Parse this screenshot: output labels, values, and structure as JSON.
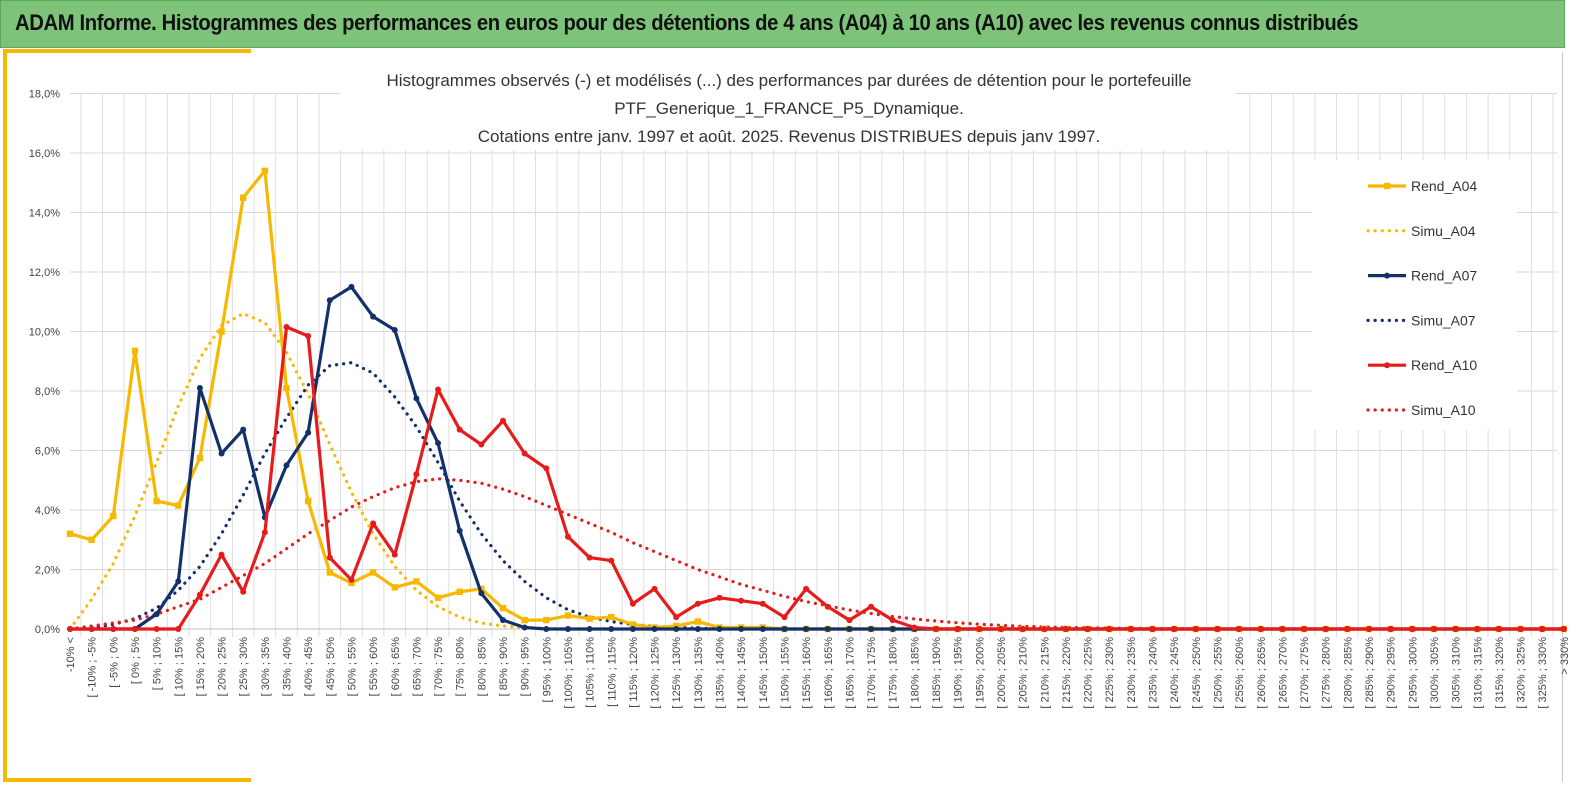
{
  "banner": {
    "title": "ADAM Informe. Histogrammes des performances en euros pour des détentions de 4 ans (A04) à 10 ans (A10) avec les revenus connus distribués"
  },
  "colors": {
    "banner": "#7dc47a",
    "accent": "#f6b800",
    "A04": "#f6b800",
    "A07": "#13306b",
    "A10": "#e61b1b"
  },
  "chart_data": {
    "type": "line",
    "title_lines": [
      "Histogrammes observés (-) et modélisés (...) des performances par durées de détention pour le portefeuille",
      "PTF_Generique_1_FRANCE_P5_Dynamique.",
      "Cotations entre janv. 1997 et août. 2025. Revenus DISTRIBUES depuis janv 1997."
    ],
    "xlabel": "",
    "ylabel": "",
    "ylim": [
      0,
      18
    ],
    "yticks": [
      "0,0%",
      "2,0%",
      "4,0%",
      "6,0%",
      "8,0%",
      "10,0%",
      "12,0%",
      "14,0%",
      "16,0%",
      "18,0%"
    ],
    "grid": true,
    "legend_position": "right",
    "categories": [
      "-10% <",
      "[ -10% ; -5%",
      "[ -5% ; 0%",
      "[ 0% ; 5%",
      "[ 5% ; 10%",
      "[ 10% ; 15%",
      "[ 15% ; 20%",
      "[ 20% ; 25%",
      "[ 25% ; 30%",
      "[ 30% ; 35%",
      "[ 35% ; 40%",
      "[ 40% ; 45%",
      "[ 45% ; 50%",
      "[ 50% ; 55%",
      "[ 55% ; 60%",
      "[ 60% ; 65%",
      "[ 65% ; 70%",
      "[ 70% ; 75%",
      "[ 75% ; 80%",
      "[ 80% ; 85%",
      "[ 85% ; 90%",
      "[ 90% ; 95%",
      "[ 95% ; 100%",
      "[ 100% ; 105%",
      "[ 105% ; 110%",
      "[ 110% ; 115%",
      "[ 115% ; 120%",
      "[ 120% ; 125%",
      "[ 125% ; 130%",
      "[ 130% ; 135%",
      "[ 135% ; 140%",
      "[ 140% ; 145%",
      "[ 145% ; 150%",
      "[ 150% ; 155%",
      "[ 155% ; 160%",
      "[ 160% ; 165%",
      "[ 165% ; 170%",
      "[ 170% ; 175%",
      "[ 175% ; 180%",
      "[ 180% ; 185%",
      "[ 185% ; 190%",
      "[ 190% ; 195%",
      "[ 195% ; 200%",
      "[ 200% ; 205%",
      "[ 205% ; 210%",
      "[ 210% ; 215%",
      "[ 215% ; 220%",
      "[ 220% ; 225%",
      "[ 225% ; 230%",
      "[ 230% ; 235%",
      "[ 235% ; 240%",
      "[ 240% ; 245%",
      "[ 245% ; 250%",
      "[ 250% ; 255%",
      "[ 255% ; 260%",
      "[ 260% ; 265%",
      "[ 265% ; 270%",
      "[ 270% ; 275%",
      "[ 275% ; 280%",
      "[ 280% ; 285%",
      "[ 285% ; 290%",
      "[ 290% ; 295%",
      "[ 295% ; 300%",
      "[ 300% ; 305%",
      "[ 305% ; 310%",
      "[ 310% ; 315%",
      "[ 315% ; 320%",
      "[ 320% ; 325%",
      "[ 325% ; 330%",
      "> 330%"
    ],
    "series": [
      {
        "name": "Rend_A04",
        "style": "solid",
        "marker": "square",
        "color": "#f6b800",
        "values": [
          3.2,
          3.0,
          3.8,
          9.35,
          4.3,
          4.15,
          5.75,
          10.0,
          14.5,
          15.4,
          8.1,
          4.3,
          1.9,
          1.55,
          1.9,
          1.4,
          1.6,
          1.05,
          1.25,
          1.35,
          0.7,
          0.3,
          0.3,
          0.45,
          0.35,
          0.4,
          0.15,
          0.05,
          0.1,
          0.25,
          0.05,
          0.05,
          0.05,
          0.0,
          0.0,
          0.0,
          0.0,
          0.0,
          0.0,
          0.0,
          0.0,
          0.0,
          0.0,
          0.0,
          0.0,
          0.0,
          0.0,
          0.0,
          0.0,
          0.0,
          0.0,
          0.0,
          0.0,
          0.0,
          0.0,
          0.0,
          0.0,
          0.0,
          0.0,
          0.0,
          0.0,
          0.0,
          0.0,
          0.0,
          0.0,
          0.0,
          0.0,
          0.0,
          0.0,
          0.0
        ]
      },
      {
        "name": "Simu_A04",
        "style": "dotted",
        "marker": "none",
        "color": "#f6b800",
        "values": [
          0.0,
          1.0,
          2.2,
          3.8,
          5.6,
          7.5,
          9.1,
          10.2,
          10.6,
          10.3,
          9.3,
          7.9,
          6.2,
          4.6,
          3.2,
          2.1,
          1.3,
          0.75,
          0.4,
          0.2,
          0.1,
          0.05,
          0.02,
          0.0,
          0.0,
          0.0,
          0.0,
          0.0,
          0.0,
          0.0,
          0.0,
          0.0,
          0.0,
          0.0,
          0.0,
          0.0,
          0.0,
          0.0,
          0.0,
          0.0,
          0.0,
          0.0,
          0.0,
          0.0,
          0.0,
          0.0,
          0.0,
          0.0,
          0.0,
          0.0,
          0.0,
          0.0,
          0.0,
          0.0,
          0.0,
          0.0,
          0.0,
          0.0,
          0.0,
          0.0,
          0.0,
          0.0,
          0.0,
          0.0,
          0.0,
          0.0,
          0.0,
          0.0,
          0.0,
          0.0
        ]
      },
      {
        "name": "Rend_A07",
        "style": "solid",
        "marker": "circle",
        "color": "#13306b",
        "values": [
          0.0,
          0.0,
          0.0,
          0.0,
          0.5,
          1.6,
          8.1,
          5.9,
          6.7,
          3.75,
          5.5,
          6.6,
          11.05,
          11.5,
          10.5,
          10.05,
          7.75,
          6.25,
          3.3,
          1.2,
          0.3,
          0.05,
          0.0,
          0.0,
          0.0,
          0.0,
          0.0,
          0.0,
          0.0,
          0.0,
          0.0,
          0.0,
          0.0,
          0.0,
          0.0,
          0.0,
          0.0,
          0.0,
          0.0,
          0.0,
          0.0,
          0.0,
          0.0,
          0.0,
          0.0,
          0.0,
          0.0,
          0.0,
          0.0,
          0.0,
          0.0,
          0.0,
          0.0,
          0.0,
          0.0,
          0.0,
          0.0,
          0.0,
          0.0,
          0.0,
          0.0,
          0.0,
          0.0,
          0.0,
          0.0,
          0.0,
          0.0,
          0.0,
          0.0,
          0.0
        ]
      },
      {
        "name": "Simu_A07",
        "style": "dotted",
        "marker": "none",
        "color": "#13306b",
        "values": [
          0.0,
          0.05,
          0.15,
          0.35,
          0.7,
          1.3,
          2.1,
          3.2,
          4.5,
          5.9,
          7.1,
          8.2,
          8.85,
          8.95,
          8.6,
          7.8,
          6.8,
          5.6,
          4.3,
          3.2,
          2.3,
          1.6,
          1.05,
          0.65,
          0.4,
          0.25,
          0.15,
          0.08,
          0.05,
          0.03,
          0.01,
          0.0,
          0.0,
          0.0,
          0.0,
          0.0,
          0.0,
          0.0,
          0.0,
          0.0,
          0.0,
          0.0,
          0.0,
          0.0,
          0.0,
          0.0,
          0.0,
          0.0,
          0.0,
          0.0,
          0.0,
          0.0,
          0.0,
          0.0,
          0.0,
          0.0,
          0.0,
          0.0,
          0.0,
          0.0,
          0.0,
          0.0,
          0.0,
          0.0,
          0.0,
          0.0,
          0.0,
          0.0,
          0.0,
          0.0
        ]
      },
      {
        "name": "Rend_A10",
        "style": "solid",
        "marker": "circle",
        "color": "#e61b1b",
        "values": [
          0.0,
          0.0,
          0.0,
          0.0,
          0.0,
          0.0,
          1.15,
          2.5,
          1.25,
          3.25,
          10.15,
          9.85,
          2.4,
          1.65,
          3.55,
          2.5,
          5.2,
          8.05,
          6.7,
          6.2,
          7.0,
          5.9,
          5.4,
          3.1,
          2.4,
          2.3,
          0.85,
          1.35,
          0.4,
          0.85,
          1.05,
          0.95,
          0.85,
          0.4,
          1.35,
          0.75,
          0.3,
          0.75,
          0.3,
          0.05,
          0.0,
          0.0,
          0.0,
          0.0,
          0.0,
          0.0,
          0.0,
          0.0,
          0.0,
          0.0,
          0.0,
          0.0,
          0.0,
          0.0,
          0.0,
          0.0,
          0.0,
          0.0,
          0.0,
          0.0,
          0.0,
          0.0,
          0.0,
          0.0,
          0.0,
          0.0,
          0.0,
          0.0,
          0.0,
          0.0
        ]
      },
      {
        "name": "Simu_A10",
        "style": "dotted",
        "marker": "none",
        "color": "#e61b1b",
        "values": [
          0.0,
          0.1,
          0.2,
          0.3,
          0.5,
          0.75,
          1.0,
          1.4,
          1.8,
          2.2,
          2.7,
          3.2,
          3.65,
          4.1,
          4.45,
          4.75,
          4.95,
          5.05,
          5.0,
          4.9,
          4.7,
          4.45,
          4.15,
          3.85,
          3.55,
          3.25,
          2.9,
          2.6,
          2.3,
          2.0,
          1.75,
          1.5,
          1.3,
          1.1,
          0.92,
          0.78,
          0.64,
          0.52,
          0.42,
          0.34,
          0.27,
          0.21,
          0.16,
          0.12,
          0.09,
          0.07,
          0.05,
          0.04,
          0.03,
          0.02,
          0.015,
          0.01,
          0.01,
          0.0,
          0.0,
          0.0,
          0.0,
          0.0,
          0.0,
          0.0,
          0.0,
          0.0,
          0.0,
          0.0,
          0.0,
          0.0,
          0.0,
          0.0,
          0.0,
          0.0
        ]
      }
    ]
  }
}
